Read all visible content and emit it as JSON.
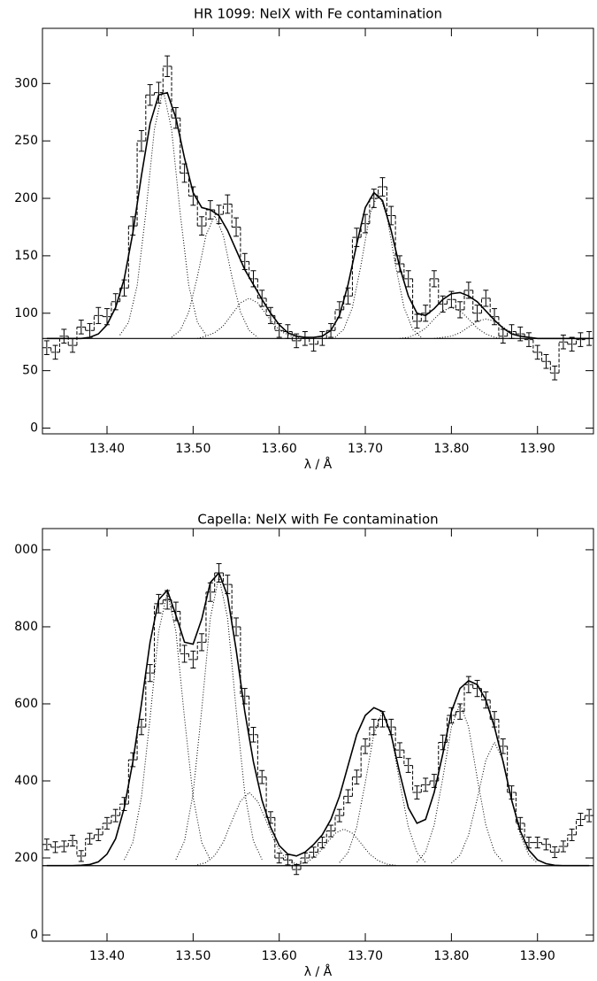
{
  "chart_data": [
    {
      "type": "line",
      "title": "HR 1099: NeIX with Fe contamination",
      "xlabel": "λ / Å",
      "xlim": [
        13.325,
        13.965
      ],
      "ylim": [
        -5,
        348
      ],
      "xticks": [
        {
          "value": 13.4,
          "label": "13.40"
        },
        {
          "value": 13.5,
          "label": "13.50"
        },
        {
          "value": 13.6,
          "label": "13.60"
        },
        {
          "value": 13.7,
          "label": "13.70"
        },
        {
          "value": 13.8,
          "label": "13.80"
        },
        {
          "value": 13.9,
          "label": "13.90"
        }
      ],
      "yticks": [
        0,
        50,
        100,
        150,
        200,
        250,
        300
      ],
      "continuum": 78,
      "x": [
        13.33,
        13.34,
        13.35,
        13.36,
        13.37,
        13.38,
        13.39,
        13.4,
        13.41,
        13.42,
        13.43,
        13.44,
        13.45,
        13.46,
        13.47,
        13.48,
        13.49,
        13.5,
        13.51,
        13.52,
        13.53,
        13.54,
        13.55,
        13.56,
        13.57,
        13.58,
        13.59,
        13.6,
        13.61,
        13.62,
        13.63,
        13.64,
        13.65,
        13.66,
        13.67,
        13.68,
        13.69,
        13.7,
        13.71,
        13.72,
        13.73,
        13.74,
        13.75,
        13.76,
        13.77,
        13.78,
        13.79,
        13.8,
        13.81,
        13.82,
        13.83,
        13.84,
        13.85,
        13.86,
        13.87,
        13.88,
        13.89,
        13.9,
        13.91,
        13.92,
        13.93,
        13.94,
        13.95,
        13.96
      ],
      "series": [
        {
          "kind": "data",
          "values": [
            70,
            66,
            80,
            72,
            88,
            85,
            98,
            97,
            110,
            122,
            176,
            250,
            290,
            292,
            315,
            270,
            222,
            202,
            176,
            190,
            186,
            195,
            175,
            145,
            130,
            113,
            98,
            85,
            84,
            76,
            78,
            73,
            78,
            85,
            103,
            115,
            166,
            178,
            200,
            210,
            185,
            143,
            130,
            93,
            100,
            130,
            108,
            112,
            103,
            120,
            100,
            113,
            97,
            80,
            84,
            82,
            77,
            66,
            58,
            48,
            75,
            73,
            77,
            78
          ],
          "errors": [
            6,
            6,
            6,
            6,
            6,
            6,
            7,
            7,
            7,
            7,
            8,
            9,
            9,
            9,
            9,
            9,
            8,
            8,
            8,
            8,
            8,
            8,
            8,
            7,
            7,
            7,
            7,
            6,
            6,
            6,
            6,
            6,
            6,
            6,
            7,
            7,
            8,
            8,
            8,
            8,
            8,
            7,
            7,
            6,
            7,
            7,
            7,
            7,
            7,
            7,
            7,
            7,
            7,
            6,
            6,
            6,
            6,
            6,
            6,
            6,
            6,
            6,
            6,
            6
          ]
        },
        {
          "kind": "model",
          "values": [
            78,
            78,
            78,
            78,
            78,
            79,
            82,
            90,
            105,
            130,
            170,
            220,
            265,
            290,
            292,
            270,
            235,
            205,
            192,
            190,
            185,
            172,
            155,
            138,
            125,
            112,
            100,
            90,
            83,
            80,
            79,
            79,
            80,
            85,
            98,
            125,
            160,
            192,
            205,
            198,
            172,
            140,
            115,
            100,
            98,
            104,
            112,
            117,
            118,
            115,
            110,
            102,
            94,
            87,
            82,
            80,
            79,
            78,
            78,
            78,
            78,
            78,
            78,
            78
          ]
        },
        {
          "kind": "component",
          "x": [
            13.415,
            13.425,
            13.435,
            13.445,
            13.455,
            13.465,
            13.475,
            13.485,
            13.495,
            13.505,
            13.515
          ],
          "values": [
            81,
            92,
            124,
            187,
            260,
            295,
            260,
            187,
            124,
            92,
            81
          ]
        },
        {
          "kind": "component",
          "x": [
            13.475,
            13.485,
            13.495,
            13.505,
            13.515,
            13.525,
            13.535,
            13.545,
            13.555,
            13.565,
            13.575
          ],
          "values": [
            79,
            85,
            101,
            132,
            168,
            185,
            168,
            132,
            101,
            85,
            79
          ]
        },
        {
          "kind": "component",
          "x": [
            13.505,
            13.515,
            13.525,
            13.535,
            13.545,
            13.555,
            13.565,
            13.575,
            13.585,
            13.595,
            13.605,
            13.615,
            13.625
          ],
          "values": [
            78,
            80,
            83,
            89,
            99,
            109,
            113,
            109,
            99,
            89,
            83,
            80,
            78
          ]
        },
        {
          "kind": "component",
          "x": [
            13.665,
            13.675,
            13.685,
            13.695,
            13.705,
            13.715,
            13.725,
            13.735,
            13.745,
            13.755,
            13.765
          ],
          "values": [
            79,
            86,
            105,
            142,
            185,
            205,
            185,
            142,
            105,
            86,
            79
          ]
        },
        {
          "kind": "component",
          "x": [
            13.74,
            13.75,
            13.76,
            13.77,
            13.78,
            13.79,
            13.8,
            13.81,
            13.82,
            13.83,
            13.84,
            13.85,
            13.86
          ],
          "values": [
            78,
            79,
            82,
            87,
            95,
            102,
            105,
            102,
            95,
            87,
            82,
            79,
            78
          ]
        },
        {
          "kind": "component",
          "x": [
            13.78,
            13.79,
            13.8,
            13.81,
            13.82,
            13.83,
            13.84,
            13.85,
            13.86,
            13.87,
            13.88,
            13.89,
            13.9
          ],
          "values": [
            78,
            79,
            80,
            83,
            88,
            93,
            95,
            93,
            88,
            83,
            80,
            79,
            78
          ]
        }
      ]
    },
    {
      "type": "line",
      "title": "Capella: NeIX with Fe contamination",
      "xlabel": "λ / Å",
      "xlim": [
        13.325,
        13.965
      ],
      "ylim": [
        -16,
        1055
      ],
      "xticks": [
        {
          "value": 13.4,
          "label": "13.40"
        },
        {
          "value": 13.5,
          "label": "13.50"
        },
        {
          "value": 13.6,
          "label": "13.60"
        },
        {
          "value": 13.7,
          "label": "13.70"
        },
        {
          "value": 13.8,
          "label": "13.80"
        },
        {
          "value": 13.9,
          "label": "13.90"
        }
      ],
      "yticks": [
        0,
        200,
        400,
        600,
        800,
        {
          "value": 1000,
          "label": "000"
        }
      ],
      "continuum": 180,
      "x": [
        13.33,
        13.34,
        13.35,
        13.36,
        13.37,
        13.38,
        13.39,
        13.4,
        13.41,
        13.42,
        13.43,
        13.44,
        13.45,
        13.46,
        13.47,
        13.48,
        13.49,
        13.5,
        13.51,
        13.52,
        13.53,
        13.54,
        13.55,
        13.56,
        13.57,
        13.58,
        13.59,
        13.6,
        13.61,
        13.62,
        13.63,
        13.64,
        13.65,
        13.66,
        13.67,
        13.68,
        13.69,
        13.7,
        13.71,
        13.72,
        13.73,
        13.74,
        13.75,
        13.76,
        13.77,
        13.78,
        13.79,
        13.8,
        13.81,
        13.82,
        13.83,
        13.84,
        13.85,
        13.86,
        13.87,
        13.88,
        13.89,
        13.9,
        13.91,
        13.92,
        13.93,
        13.94,
        13.95,
        13.96
      ],
      "series": [
        {
          "kind": "data",
          "values": [
            235,
            228,
            230,
            245,
            205,
            250,
            260,
            290,
            310,
            340,
            455,
            540,
            680,
            860,
            870,
            840,
            730,
            715,
            760,
            890,
            940,
            910,
            800,
            620,
            520,
            410,
            305,
            200,
            195,
            170,
            200,
            215,
            240,
            270,
            310,
            360,
            410,
            490,
            540,
            560,
            540,
            480,
            440,
            370,
            390,
            400,
            500,
            570,
            580,
            650,
            640,
            610,
            560,
            490,
            370,
            290,
            240,
            240,
            235,
            215,
            230,
            260,
            300,
            310
          ],
          "errors": [
            14,
            14,
            14,
            14,
            14,
            14,
            15,
            15,
            16,
            17,
            18,
            20,
            22,
            24,
            24,
            24,
            22,
            22,
            22,
            24,
            24,
            24,
            23,
            20,
            19,
            17,
            15,
            13,
            13,
            13,
            13,
            13,
            14,
            15,
            16,
            17,
            18,
            19,
            20,
            20,
            20,
            19,
            18,
            17,
            17,
            17,
            19,
            20,
            20,
            21,
            21,
            21,
            20,
            19,
            17,
            15,
            14,
            14,
            14,
            14,
            14,
            15,
            16,
            16
          ]
        },
        {
          "kind": "model",
          "values": [
            180,
            180,
            180,
            180,
            181,
            183,
            190,
            210,
            250,
            330,
            450,
            600,
            760,
            870,
            895,
            830,
            760,
            755,
            820,
            915,
            940,
            880,
            740,
            580,
            450,
            350,
            280,
            232,
            210,
            205,
            215,
            235,
            260,
            300,
            360,
            440,
            520,
            570,
            590,
            580,
            520,
            420,
            330,
            290,
            300,
            370,
            470,
            580,
            640,
            660,
            650,
            610,
            540,
            450,
            350,
            270,
            220,
            195,
            185,
            181,
            180,
            180,
            180,
            180
          ]
        },
        {
          "kind": "component",
          "x": [
            13.42,
            13.43,
            13.44,
            13.45,
            13.46,
            13.47,
            13.48,
            13.49,
            13.5,
            13.51,
            13.52
          ],
          "values": [
            195,
            240,
            358,
            563,
            788,
            890,
            788,
            563,
            358,
            240,
            195
          ]
        },
        {
          "kind": "component",
          "x": [
            13.48,
            13.49,
            13.5,
            13.51,
            13.52,
            13.53,
            13.54,
            13.55,
            13.56,
            13.57,
            13.58
          ],
          "values": [
            196,
            244,
            368,
            585,
            823,
            930,
            823,
            585,
            368,
            244,
            196
          ]
        },
        {
          "kind": "component",
          "x": [
            13.505,
            13.515,
            13.525,
            13.535,
            13.545,
            13.555,
            13.565,
            13.575,
            13.585,
            13.595,
            13.605,
            13.615,
            13.625
          ],
          "values": [
            182,
            188,
            206,
            241,
            296,
            347,
            370,
            347,
            296,
            241,
            206,
            188,
            182
          ]
        },
        {
          "kind": "component",
          "x": [
            13.615,
            13.625,
            13.635,
            13.645,
            13.655,
            13.665,
            13.675,
            13.685,
            13.695,
            13.705,
            13.715,
            13.725,
            13.735
          ],
          "values": [
            181,
            184,
            193,
            210,
            238,
            264,
            275,
            264,
            238,
            210,
            193,
            184,
            181
          ]
        },
        {
          "kind": "component",
          "x": [
            13.67,
            13.68,
            13.69,
            13.7,
            13.71,
            13.72,
            13.73,
            13.74,
            13.75,
            13.76,
            13.77
          ],
          "values": [
            188,
            214,
            280,
            396,
            523,
            580,
            523,
            396,
            280,
            214,
            188
          ]
        },
        {
          "kind": "component",
          "x": [
            13.76,
            13.77,
            13.78,
            13.79,
            13.8,
            13.81,
            13.82,
            13.83,
            13.84,
            13.85,
            13.86
          ],
          "values": [
            189,
            216,
            285,
            407,
            540,
            600,
            540,
            407,
            285,
            216,
            189
          ]
        },
        {
          "kind": "component",
          "x": [
            13.8,
            13.81,
            13.82,
            13.83,
            13.84,
            13.85,
            13.86,
            13.87,
            13.88,
            13.89,
            13.9
          ],
          "values": [
            187,
            207,
            260,
            353,
            454,
            500,
            454,
            353,
            260,
            207,
            187
          ]
        }
      ]
    }
  ]
}
